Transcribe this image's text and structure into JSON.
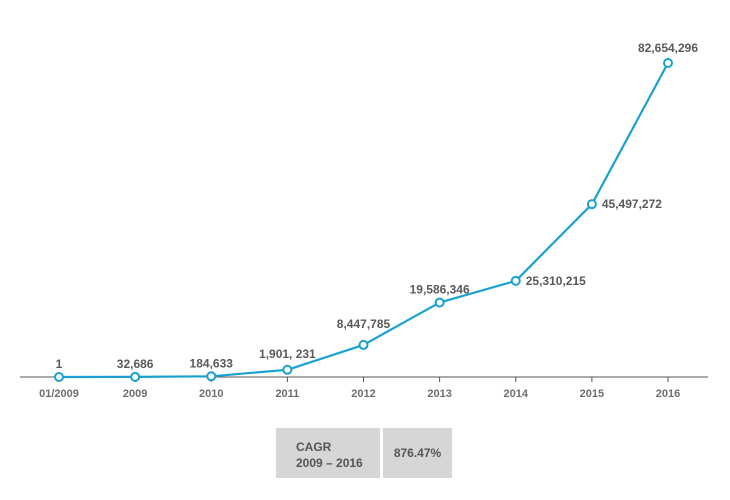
{
  "chart_data": {
    "type": "line",
    "categories": [
      "01/2009",
      "2009",
      "2010",
      "2011",
      "2012",
      "2013",
      "2014",
      "2015",
      "2016"
    ],
    "values": [
      1,
      32686,
      184633,
      1901231,
      8447785,
      19586346,
      25310215,
      45497272,
      82654296
    ],
    "data_labels": [
      "1",
      "32,686",
      "184,633",
      "1,901, 231",
      "8,447,785",
      "19,586,346",
      "25,310,215",
      "45,497,272",
      "82,654,296"
    ],
    "title": "",
    "xlabel": "",
    "ylabel": "",
    "ylim": [
      0,
      82654296
    ],
    "grid": false,
    "line_color": "#1ba1d1",
    "marker_fill": "#ffffff"
  },
  "cagr": {
    "label_line1": "CAGR",
    "label_line2": "2009 – 2016",
    "value": "876.47%"
  }
}
